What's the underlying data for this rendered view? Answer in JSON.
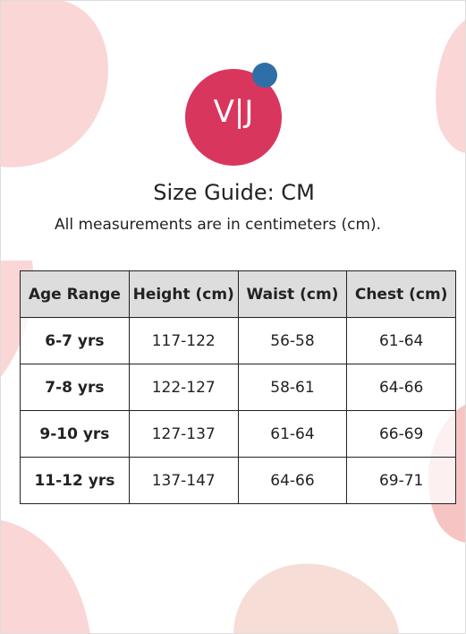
{
  "logo": "V|J",
  "title": "Size Guide: CM",
  "subtitle": "All measurements are in centimeters (cm).",
  "table": {
    "header": [
      "Age Range",
      "Height (cm)",
      "Waist (cm)",
      "Chest (cm)"
    ],
    "rows": [
      [
        "6-7 yrs",
        "117-122",
        "56-58",
        "61-64"
      ],
      [
        "7-8 yrs",
        "122-127",
        "58-61",
        "64-66"
      ],
      [
        "9-10 yrs",
        "127-137",
        "61-64",
        "66-69"
      ],
      [
        "11-12 yrs",
        "137-147",
        "64-66",
        "69-71"
      ]
    ]
  }
}
